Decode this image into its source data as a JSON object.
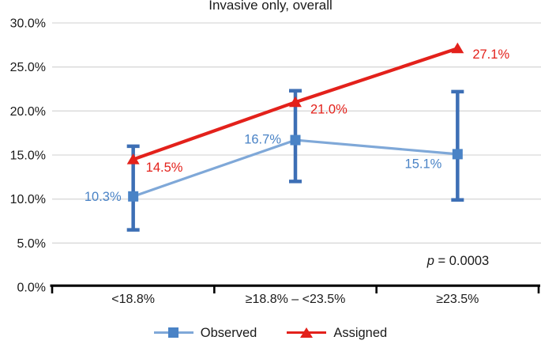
{
  "chart_data": {
    "type": "line",
    "title": "Invasive only, overall",
    "categories": [
      "<18.8%",
      "≥18.8% – <23.5%",
      "≥23.5%"
    ],
    "series": [
      {
        "name": "Observed",
        "marker": "square",
        "values": [
          10.3,
          16.7,
          15.1
        ],
        "labels": [
          "10.3%",
          "16.7%",
          "15.1%"
        ],
        "error_low": [
          6.5,
          12.0,
          9.9
        ],
        "error_high": [
          16.0,
          22.3,
          22.2
        ],
        "line_color": "#7fa8d8",
        "marker_color": "#4a83c6",
        "error_color": "#3d6fb5",
        "label_color": "#4a83c6"
      },
      {
        "name": "Assigned",
        "marker": "triangle",
        "values": [
          14.5,
          21.0,
          27.1
        ],
        "labels": [
          "14.5%",
          "21.0%",
          "27.1%"
        ],
        "line_color": "#e3211b",
        "marker_color": "#e3211b",
        "label_color": "#e3211b"
      }
    ],
    "y_axis": {
      "min": 0,
      "max": 30,
      "step": 5,
      "tick_labels": [
        "0.0%",
        "5.0%",
        "10.0%",
        "15.0%",
        "20.0%",
        "25.0%",
        "30.0%"
      ]
    },
    "annotation": {
      "italic": "p",
      "rest": " = 0.0003"
    },
    "legend_position": "bottom",
    "grid": true,
    "colors": {
      "grid": "#d9d9d9",
      "axis": "#000000",
      "text": "#1a1a1a"
    }
  }
}
